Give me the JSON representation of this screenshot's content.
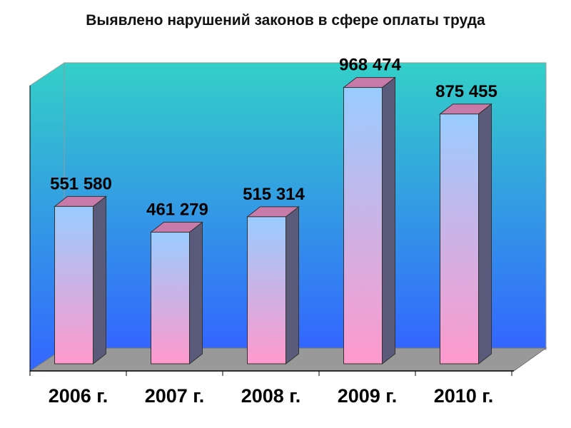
{
  "chart_data": {
    "type": "bar",
    "title": "Выявлено нарушений законов в сфере оплаты труда",
    "categories": [
      "2006 г.",
      "2007 г.",
      "2008 г.",
      "2009 г.",
      "2010 г."
    ],
    "values": [
      551580,
      461279,
      515314,
      968474,
      875455
    ],
    "value_labels": [
      "551 580",
      "461 279",
      "515 314",
      "968 474",
      "875 455"
    ],
    "ylim": [
      0,
      1000000
    ]
  }
}
